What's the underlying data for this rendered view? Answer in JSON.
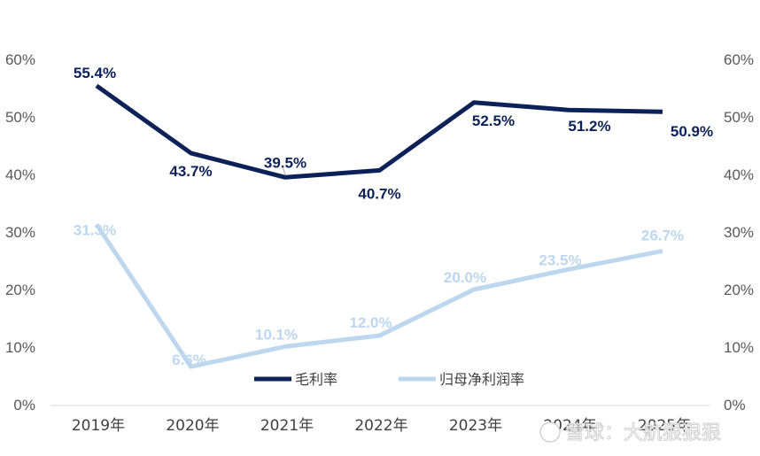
{
  "chart_data": {
    "type": "line",
    "categories": [
      "2019年",
      "2020年",
      "2021年",
      "2022年",
      "2023年",
      "2024年",
      "2025年"
    ],
    "series": [
      {
        "name": "毛利率",
        "values": [
          55.4,
          43.7,
          39.5,
          40.7,
          52.5,
          51.2,
          50.9
        ],
        "labels": [
          "55.4%",
          "43.7%",
          "39.5%",
          "40.7%",
          "52.5%",
          "51.2%",
          "50.9%"
        ],
        "color": "#0b2158"
      },
      {
        "name": "归母净利润率",
        "values": [
          31.3,
          6.6,
          10.1,
          12.0,
          20.0,
          23.5,
          26.7
        ],
        "labels": [
          "31.3%",
          "6.6%",
          "10.1%",
          "12.0%",
          "20.0%",
          "23.5%",
          "26.7%"
        ],
        "color": "#bdd7ee"
      }
    ],
    "ylim": [
      0,
      60
    ],
    "yticks": [
      "0%",
      "10%",
      "20%",
      "30%",
      "40%",
      "50%",
      "60%"
    ],
    "dual_axis": true,
    "grid": false,
    "legend_position": "bottom-center"
  },
  "watermark": "雪球：大航狠狠狠"
}
